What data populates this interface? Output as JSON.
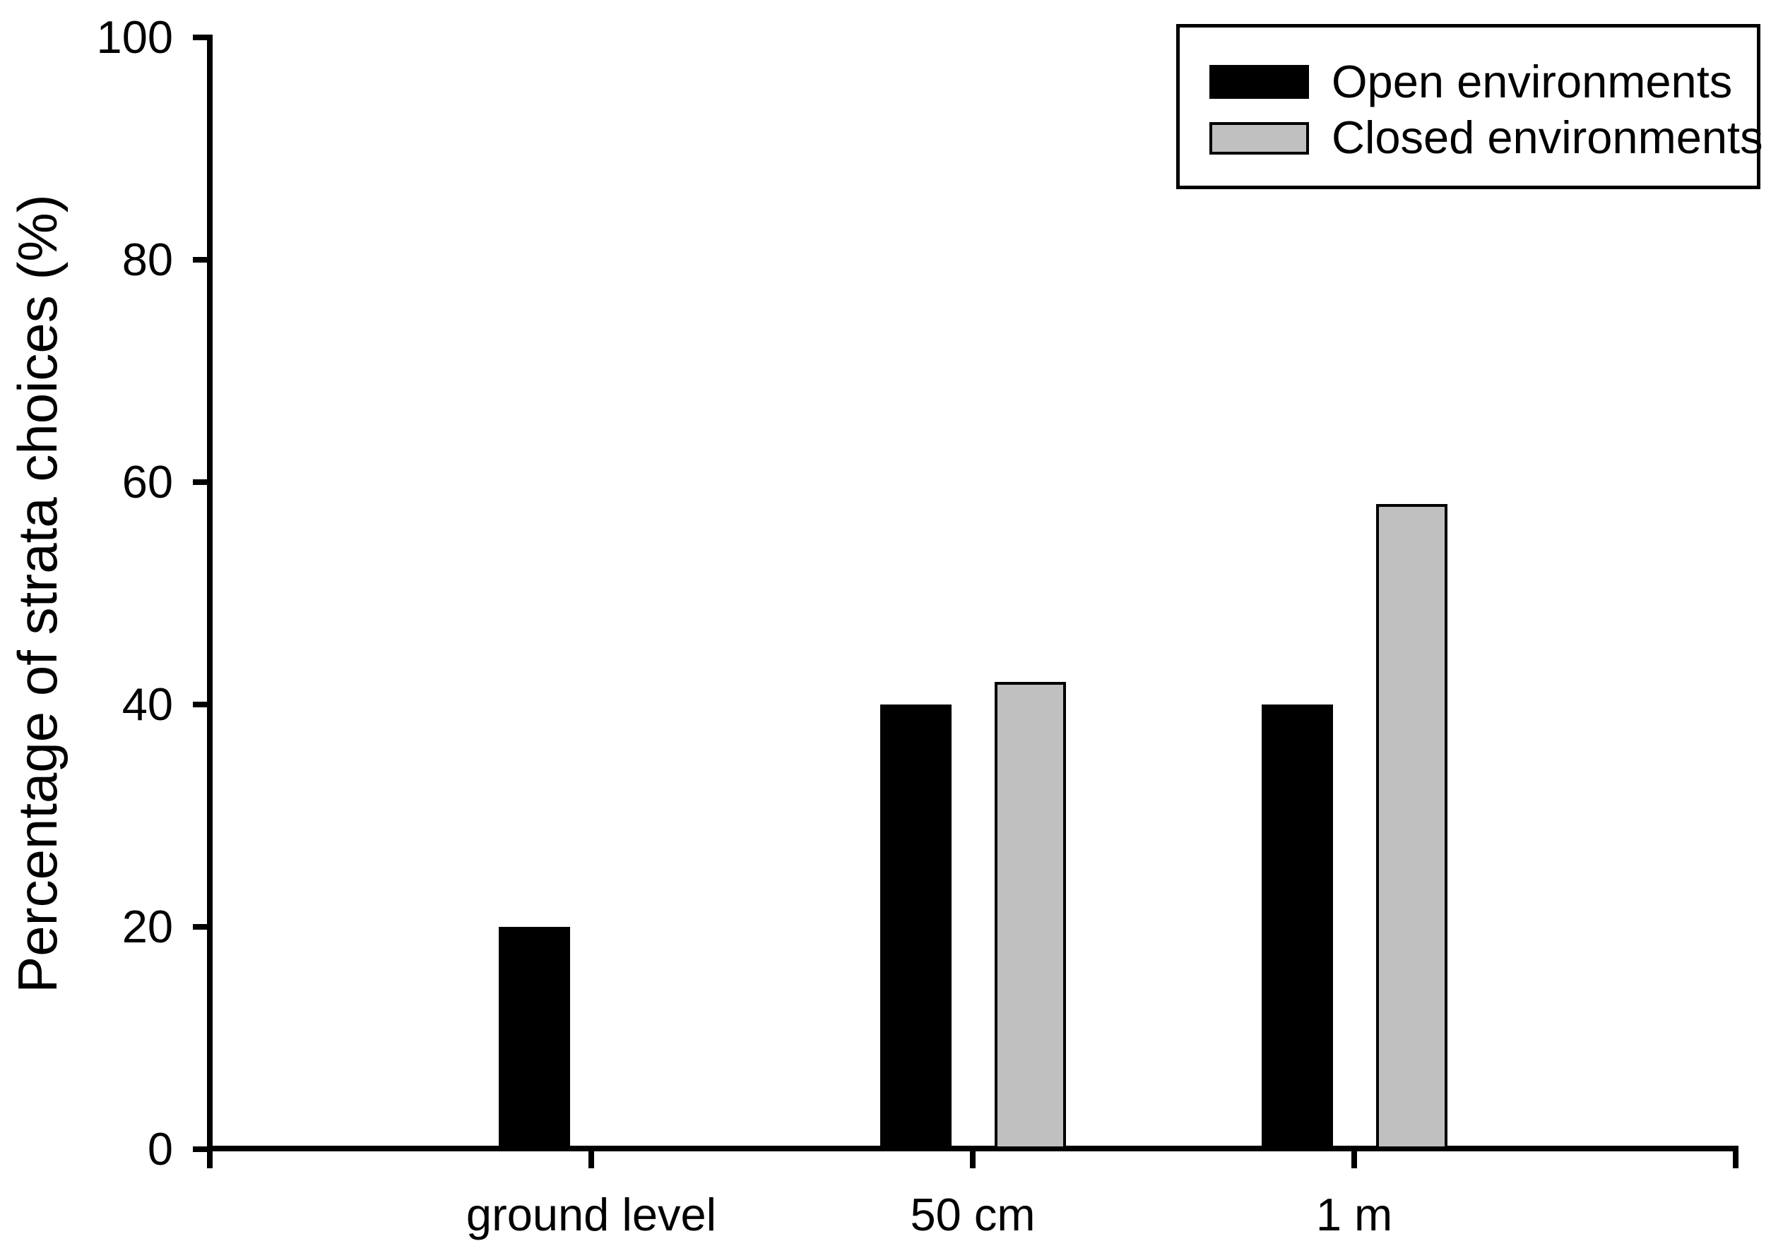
{
  "chart_data": {
    "type": "bar",
    "title": "",
    "ylabel": "Percentage of strata choices (%)",
    "xlabel": "",
    "categories": [
      "ground level",
      "50 cm",
      "1 m"
    ],
    "series": [
      {
        "name": "Open environments",
        "color": "#000000",
        "values": [
          20,
          40,
          40
        ]
      },
      {
        "name": "Closed environments",
        "color": "#c0c0c0",
        "values": [
          0,
          42,
          58
        ]
      }
    ],
    "ylim": [
      0,
      100
    ],
    "yticks": [
      0,
      20,
      40,
      60,
      80,
      100
    ],
    "grid": false,
    "legend_position": "top-right",
    "background": "#ffffff",
    "axis_color": "#000000",
    "bar_outline_color": "#000000"
  }
}
